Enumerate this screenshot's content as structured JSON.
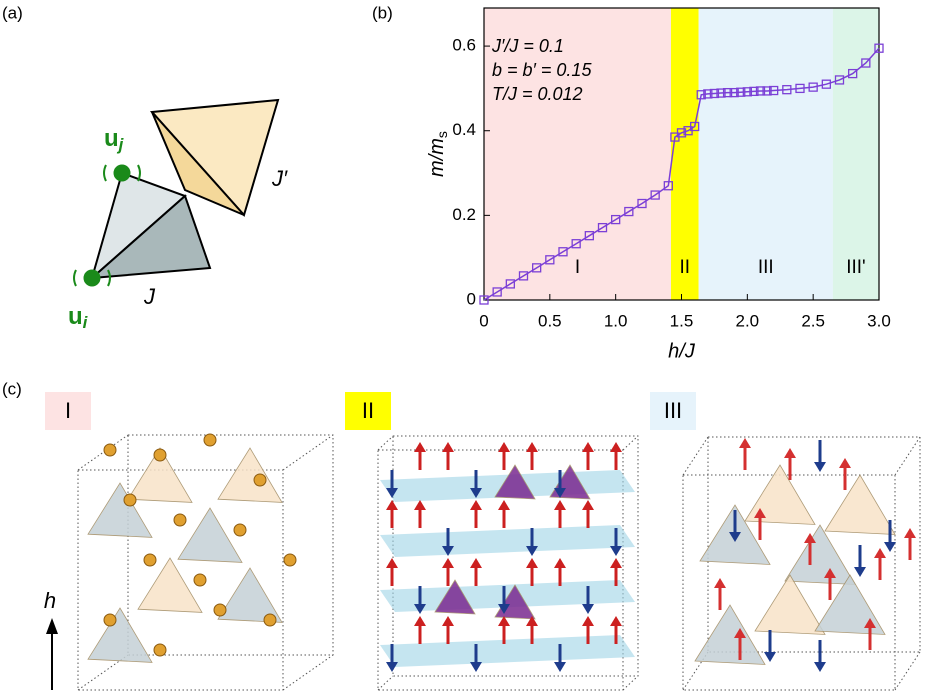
{
  "chart_data": {
    "type": "line",
    "xlabel": "h/J",
    "ylabel": "m/m",
    "ylabel_sub": "s",
    "annotations": [
      "J′/J = 0.1",
      "b = b′ = 0.15",
      "T/J = 0.012"
    ],
    "xlim": [
      0,
      3
    ],
    "ylim": [
      0,
      0.69
    ],
    "xticks": [
      0,
      0.5,
      {
        "value": 1,
        "label": "1.0"
      },
      1.5,
      {
        "value": 2,
        "label": "2.0"
      },
      2.5,
      {
        "value": 3,
        "label": "3.0"
      }
    ],
    "yticks": [
      0,
      0.2,
      0.4,
      0.6
    ],
    "regions": [
      {
        "label": "I",
        "xlim": [
          0,
          1.42
        ],
        "color": "#fde3e3"
      },
      {
        "label": "II",
        "xlim": [
          1.42,
          1.63
        ],
        "color": "#ffff00"
      },
      {
        "label": "III",
        "xlim": [
          1.63,
          2.65
        ],
        "color": "#e6f3fb"
      },
      {
        "label": "III'",
        "xlim": [
          2.65,
          3
        ],
        "color": "#dcf5e8"
      }
    ],
    "color": "#7b3fd6",
    "x": [
      0,
      0.1,
      0.2,
      0.3,
      0.4,
      0.5,
      0.6,
      0.7,
      0.8,
      0.9,
      1.0,
      1.1,
      1.2,
      1.3,
      1.4,
      1.45,
      1.5,
      1.55,
      1.6,
      1.65,
      1.7,
      1.75,
      1.8,
      1.85,
      1.9,
      1.95,
      2.0,
      2.05,
      2.1,
      2.15,
      2.2,
      2.3,
      2.4,
      2.5,
      2.6,
      2.7,
      2.8,
      2.9,
      3.0
    ],
    "values": [
      0,
      0.019,
      0.038,
      0.057,
      0.076,
      0.095,
      0.114,
      0.133,
      0.152,
      0.171,
      0.19,
      0.209,
      0.228,
      0.248,
      0.27,
      0.385,
      0.395,
      0.4,
      0.41,
      0.485,
      0.487,
      0.488,
      0.489,
      0.49,
      0.49,
      0.491,
      0.492,
      0.493,
      0.494,
      0.494,
      0.495,
      0.497,
      0.5,
      0.503,
      0.51,
      0.52,
      0.535,
      0.56,
      0.595
    ]
  },
  "panels": {
    "a": {
      "label": "(a)",
      "uj": "u",
      "uj_sub": "j",
      "ui": "u",
      "ui_sub": "i",
      "J": "J",
      "Jp": "J′"
    },
    "b": {
      "label": "(b)"
    },
    "c": {
      "label": "(c)",
      "boxes": [
        "I",
        "II",
        "III"
      ],
      "h": "h"
    }
  }
}
